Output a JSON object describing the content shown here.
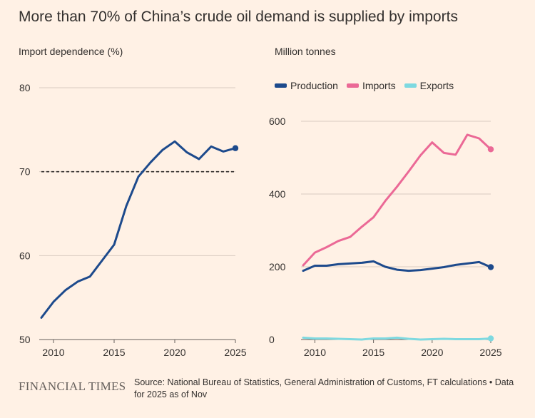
{
  "title": "More than 70% of China’s crude oil demand is supplied by imports",
  "colors": {
    "background": "#FFF1E5",
    "production": "#1D4A8C",
    "imports": "#EB6996",
    "exports": "#7ED9E0",
    "grid": "#D9CCC1",
    "reference": "#33302E"
  },
  "logo": "FINANCIAL TIMES",
  "source": "Source: National Bureau of Statistics, General Administration of Customs, FT calculations • Data for 2025 as of Nov",
  "chart_data": [
    {
      "type": "line",
      "ylabel": "Import dependence (%)",
      "ylim": [
        50,
        80
      ],
      "yticks": [
        50,
        60,
        70,
        80
      ],
      "xlim": [
        2009,
        2025
      ],
      "xticks": [
        2010,
        2015,
        2020,
        2025
      ],
      "grid": true,
      "reference_line": 70,
      "series": [
        {
          "name": "Import dependence",
          "x": [
            2009,
            2010,
            2011,
            2012,
            2013,
            2014,
            2015,
            2016,
            2017,
            2018,
            2019,
            2020,
            2021,
            2022,
            2023,
            2024,
            2025
          ],
          "values": [
            52.6,
            54.5,
            55.9,
            56.9,
            57.5,
            59.4,
            61.3,
            65.9,
            69.4,
            71.1,
            72.6,
            73.6,
            72.3,
            71.5,
            73.0,
            72.4,
            72.8
          ]
        }
      ]
    },
    {
      "type": "line",
      "ylabel": "Million tonnes",
      "ylim": [
        0,
        640
      ],
      "yticks": [
        0,
        200,
        400,
        600
      ],
      "xlim": [
        2009,
        2025
      ],
      "xticks": [
        2010,
        2015,
        2020,
        2025
      ],
      "grid": true,
      "legend": "top-left",
      "series": [
        {
          "name": "Production",
          "x": [
            2009,
            2010,
            2011,
            2012,
            2013,
            2014,
            2015,
            2016,
            2017,
            2018,
            2019,
            2020,
            2021,
            2022,
            2023,
            2024,
            2025
          ],
          "values": [
            189,
            203,
            203,
            207,
            209,
            211,
            215,
            200,
            192,
            189,
            191,
            195,
            199,
            205,
            209,
            213,
            199
          ]
        },
        {
          "name": "Imports",
          "x": [
            2009,
            2010,
            2011,
            2012,
            2013,
            2014,
            2015,
            2016,
            2017,
            2018,
            2019,
            2020,
            2021,
            2022,
            2023,
            2024,
            2025
          ],
          "values": [
            204,
            239,
            254,
            271,
            282,
            310,
            336,
            381,
            420,
            462,
            506,
            542,
            513,
            508,
            563,
            553,
            523
          ]
        },
        {
          "name": "Exports",
          "x": [
            2009,
            2010,
            2011,
            2012,
            2013,
            2014,
            2015,
            2016,
            2017,
            2018,
            2019,
            2020,
            2021,
            2022,
            2023,
            2024,
            2025
          ],
          "values": [
            5,
            3,
            3,
            2,
            1,
            0,
            3,
            3,
            5,
            2,
            0,
            1,
            2,
            1,
            1,
            1,
            3
          ]
        }
      ]
    }
  ]
}
